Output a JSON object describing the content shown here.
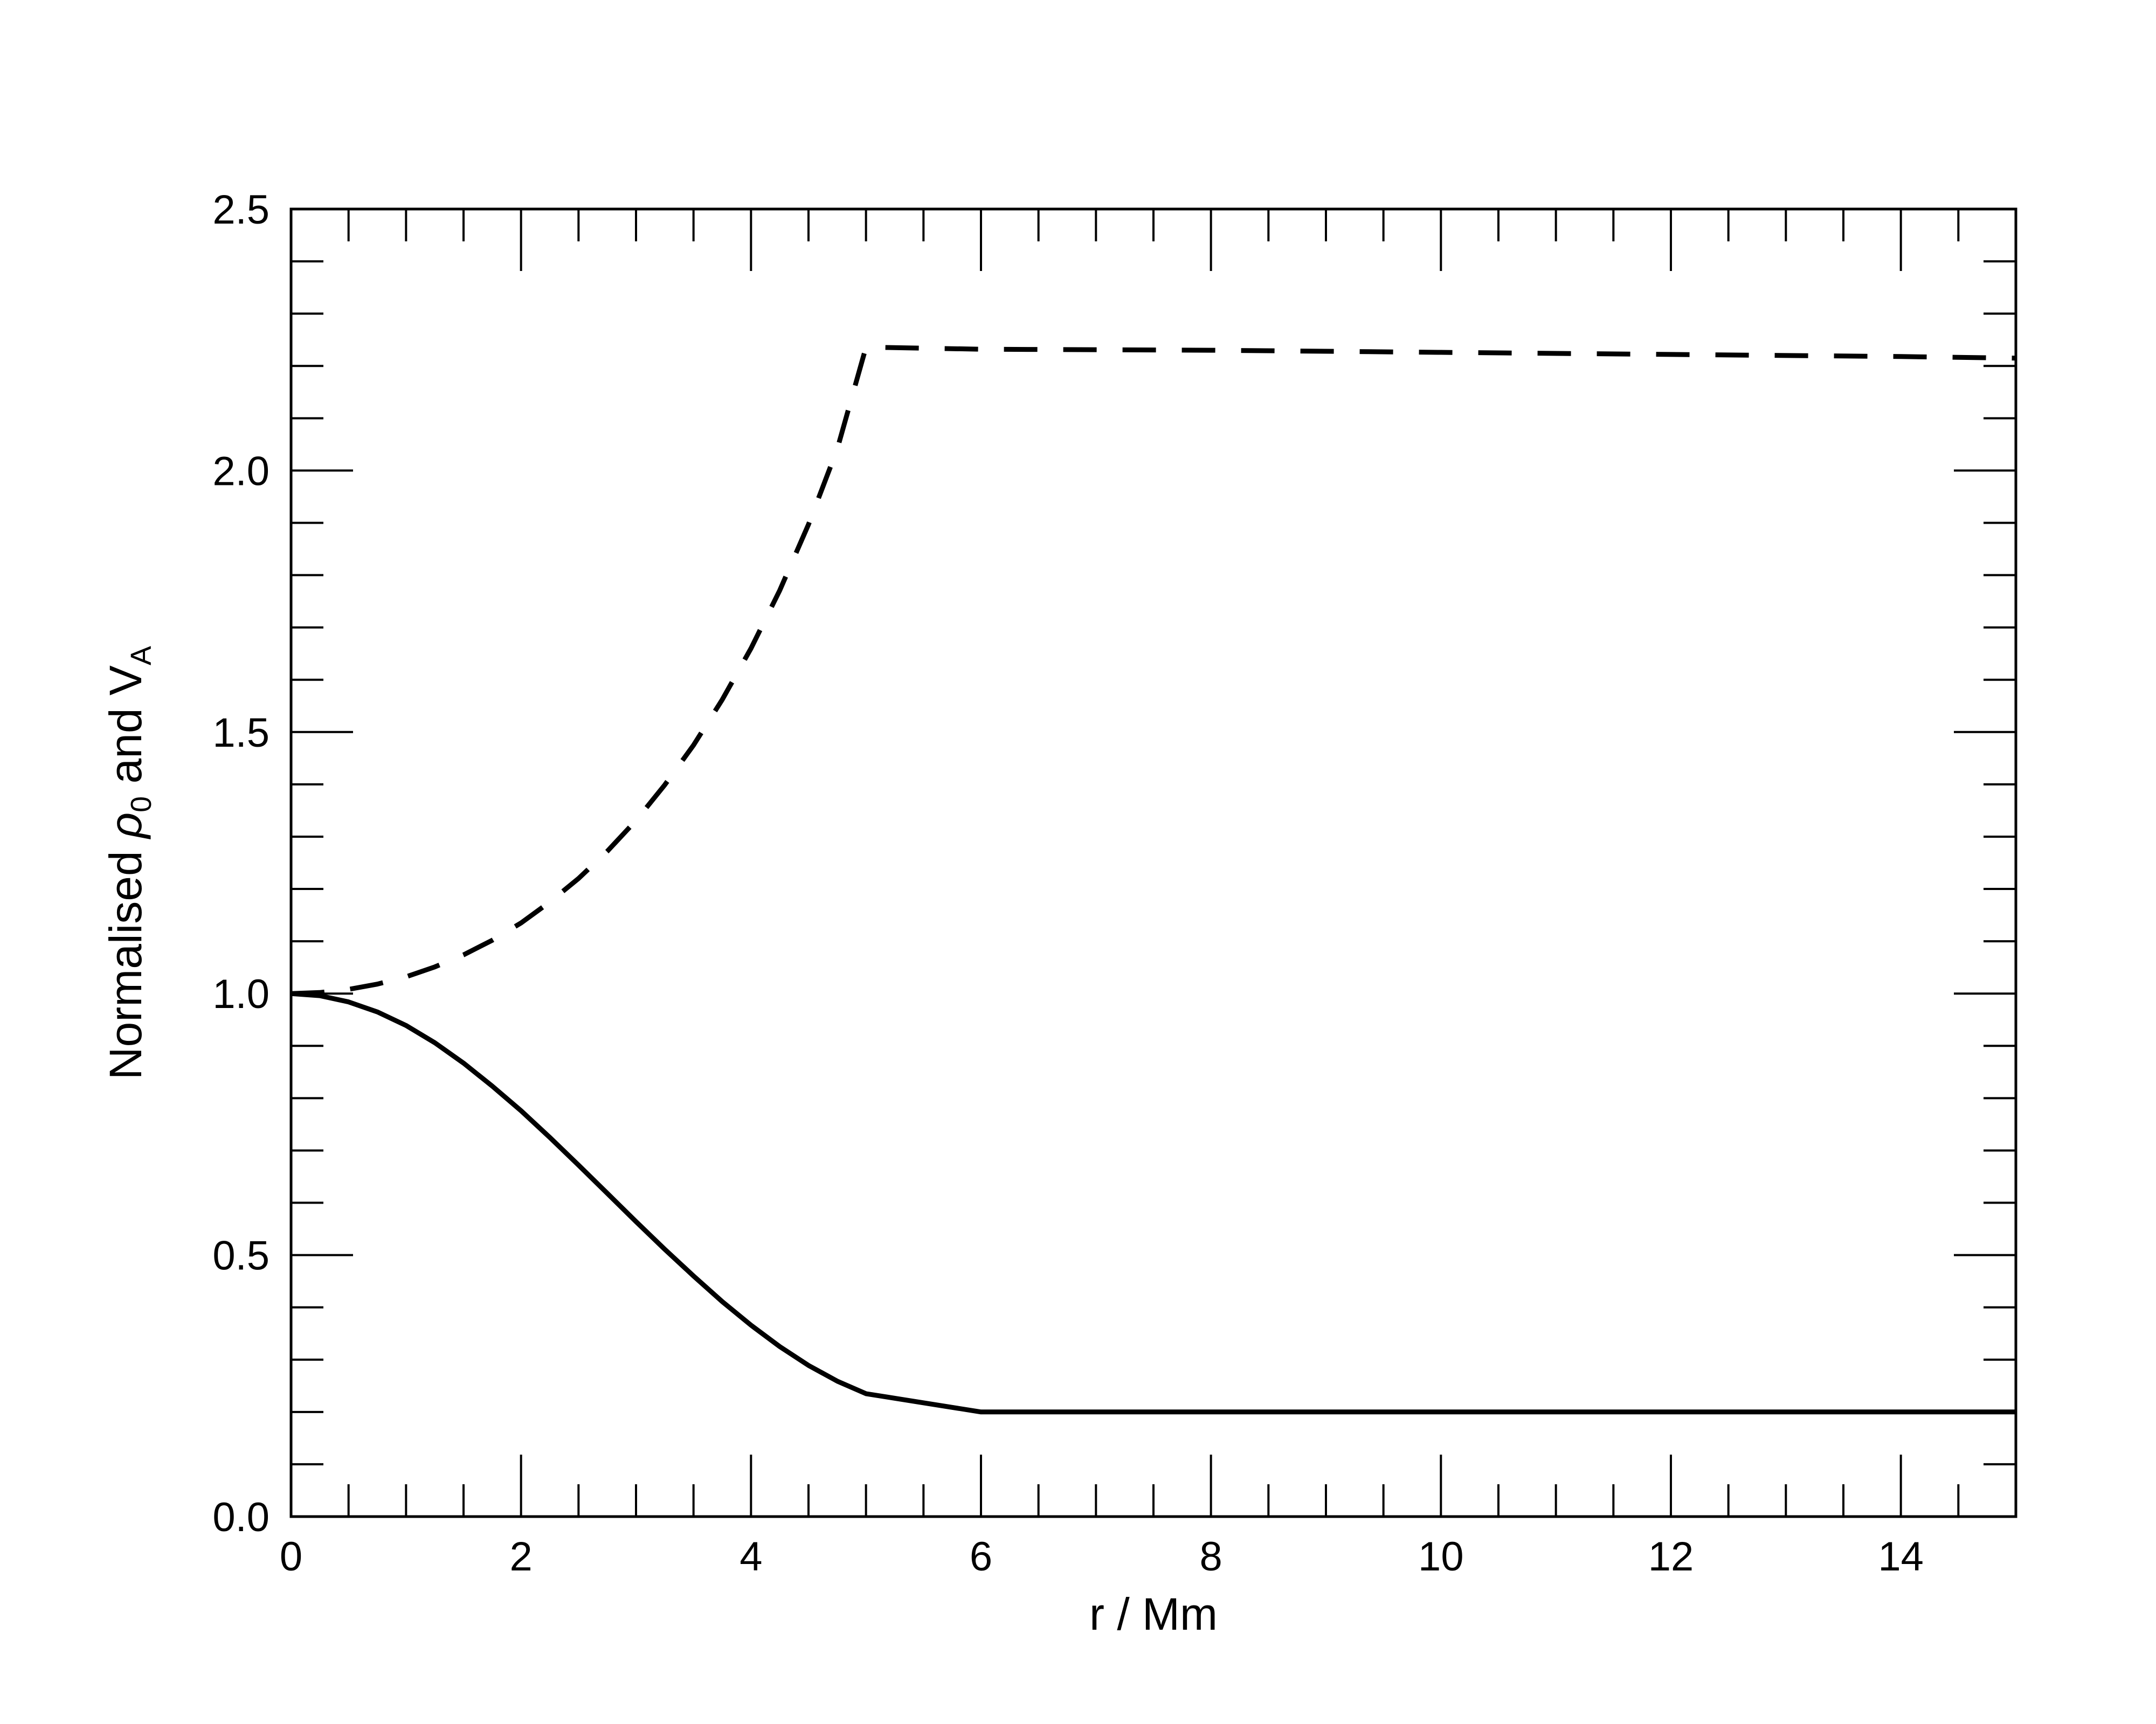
{
  "chart_data": {
    "type": "line",
    "xlabel": "r / Mm",
    "ylabel": {
      "prefix": "Normalised ",
      "rho": "ρ",
      "rho_sub": "0",
      "middle": " and V",
      "v_sub": "A"
    },
    "xlim": [
      0,
      15
    ],
    "ylim": [
      0,
      2.5
    ],
    "x_ticks_major": [
      0,
      2,
      4,
      6,
      8,
      10,
      12,
      14
    ],
    "x_tick_labels": [
      "0",
      "2",
      "4",
      "6",
      "8",
      "10",
      "12",
      "14"
    ],
    "y_ticks_major": [
      0,
      0.5,
      1.0,
      1.5,
      2.0,
      2.5
    ],
    "y_tick_labels": [
      "0.0",
      "0.5",
      "1.0",
      "1.5",
      "2.0",
      "2.5"
    ],
    "x_minor_step": 0.5,
    "y_minor_step": 0.1,
    "grid": false,
    "series": [
      {
        "style": "solid",
        "x": [
          0,
          0.25,
          0.5,
          0.75,
          1.0,
          1.25,
          1.5,
          1.75,
          2.0,
          2.25,
          2.5,
          2.75,
          3.0,
          3.25,
          3.5,
          3.75,
          4.0,
          4.25,
          4.5,
          4.75,
          5.0,
          6,
          8,
          10,
          12,
          14,
          15
        ],
        "values": [
          1.0,
          0.996,
          0.984,
          0.965,
          0.939,
          0.906,
          0.867,
          0.823,
          0.776,
          0.725,
          0.672,
          0.618,
          0.564,
          0.511,
          0.46,
          0.411,
          0.366,
          0.325,
          0.289,
          0.259,
          0.235,
          0.2,
          0.2,
          0.2,
          0.2,
          0.2,
          0.2
        ]
      },
      {
        "style": "dashed",
        "x": [
          0,
          0.25,
          0.5,
          0.75,
          1.0,
          1.25,
          1.5,
          1.75,
          2.0,
          2.25,
          2.5,
          2.75,
          3.0,
          3.25,
          3.5,
          3.75,
          4.0,
          4.25,
          4.5,
          4.75,
          5.0,
          6,
          8,
          10,
          12,
          14,
          15
        ],
        "values": [
          1.0,
          1.002,
          1.008,
          1.018,
          1.032,
          1.051,
          1.074,
          1.102,
          1.135,
          1.175,
          1.22,
          1.272,
          1.331,
          1.399,
          1.475,
          1.562,
          1.66,
          1.771,
          1.897,
          2.041,
          2.236,
          2.232,
          2.23,
          2.226,
          2.222,
          2.218,
          2.215
        ]
      }
    ]
  }
}
